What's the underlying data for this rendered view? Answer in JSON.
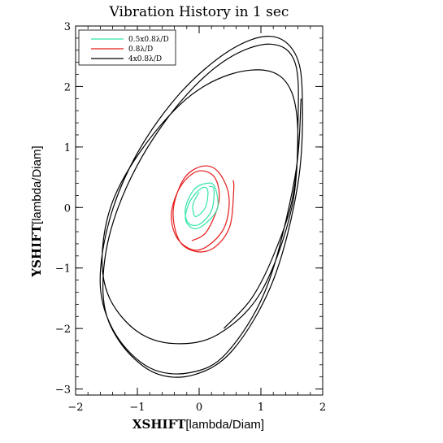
{
  "chart_data": {
    "type": "line",
    "title": "Vibration History in 1 sec",
    "xlabel": {
      "main": "XSHIFT",
      "unit": "[lambda/Diam]"
    },
    "ylabel": {
      "main": "YSHIFT",
      "unit": "[lambda/Diam]"
    },
    "xlim": [
      -2,
      2
    ],
    "ylim": [
      -3.1,
      3.0
    ],
    "xticks": [
      -2,
      -1,
      0,
      1,
      2
    ],
    "yticks": [
      -3,
      -2,
      -1,
      0,
      1,
      2,
      3
    ],
    "xtick_labels": [
      "−2",
      "−1",
      "0",
      "1",
      "2"
    ],
    "ytick_labels": [
      "−3",
      "−2",
      "−1",
      "0",
      "1",
      "2",
      "3"
    ],
    "legend_position": "top-left",
    "series": [
      {
        "name": "0.5x0.8λ/D",
        "color": "#33e6a6",
        "points": [
          [
            0.16,
            0.35
          ],
          [
            0.24,
            0.3
          ],
          [
            0.2,
            -0.05
          ],
          [
            0.0,
            -0.28
          ],
          [
            -0.18,
            -0.25
          ],
          [
            -0.22,
            0.0
          ],
          [
            -0.08,
            0.3
          ],
          [
            0.12,
            0.4
          ],
          [
            0.25,
            0.35
          ],
          [
            0.3,
            0.0
          ],
          [
            0.12,
            -0.25
          ],
          [
            -0.08,
            -0.35
          ],
          [
            -0.22,
            -0.2
          ],
          [
            -0.15,
            0.1
          ],
          [
            0.04,
            0.32
          ],
          [
            0.14,
            0.28
          ],
          [
            0.1,
            0.0
          ],
          [
            -0.06,
            -0.15
          ],
          [
            -0.1,
            0.05
          ],
          [
            0.0,
            0.25
          ]
        ]
      },
      {
        "name": "0.8λ/D",
        "color": "#e61a1a",
        "points": [
          [
            0.55,
            0.45
          ],
          [
            0.56,
            0.3
          ],
          [
            0.5,
            -0.3
          ],
          [
            0.26,
            -0.65
          ],
          [
            -0.04,
            -0.73
          ],
          [
            -0.32,
            -0.55
          ],
          [
            -0.42,
            -0.05
          ],
          [
            -0.25,
            0.47
          ],
          [
            0.04,
            0.68
          ],
          [
            0.3,
            0.6
          ],
          [
            0.48,
            0.2
          ],
          [
            0.42,
            -0.3
          ],
          [
            0.16,
            -0.62
          ],
          [
            -0.1,
            -0.7
          ],
          [
            -0.36,
            -0.5
          ],
          [
            -0.45,
            -0.1
          ],
          [
            -0.3,
            0.35
          ],
          [
            -0.02,
            0.6
          ],
          [
            0.25,
            0.5
          ],
          [
            0.32,
            0.1
          ],
          [
            0.12,
            -0.4
          ],
          [
            -0.12,
            -0.55
          ]
        ]
      },
      {
        "name": "4x0.8λ/D",
        "color": "#000000",
        "points": [
          [
            1.65,
            1.8
          ],
          [
            1.55,
            0.5
          ],
          [
            1.1,
            -1.3
          ],
          [
            0.45,
            -2.4
          ],
          [
            -0.15,
            -2.73
          ],
          [
            -0.8,
            -2.65
          ],
          [
            -1.35,
            -2.1
          ],
          [
            -1.6,
            -1.3
          ],
          [
            -1.45,
            -0.2
          ],
          [
            -1.0,
            0.9
          ],
          [
            -0.3,
            1.9
          ],
          [
            0.5,
            2.6
          ],
          [
            1.15,
            2.83
          ],
          [
            1.55,
            2.55
          ],
          [
            1.67,
            1.85
          ],
          [
            1.6,
            0.4
          ],
          [
            1.2,
            -1.2
          ],
          [
            0.55,
            -2.35
          ],
          [
            -0.1,
            -2.77
          ],
          [
            -0.75,
            -2.72
          ],
          [
            -1.3,
            -2.2
          ],
          [
            -1.55,
            -1.5
          ],
          [
            -1.45,
            -0.45
          ],
          [
            -1.0,
            0.7
          ],
          [
            -0.3,
            1.75
          ],
          [
            0.45,
            2.45
          ],
          [
            1.15,
            2.7
          ],
          [
            1.55,
            2.4
          ],
          [
            1.6,
            1.4
          ],
          [
            1.5,
            0.0
          ],
          [
            1.0,
            -1.4
          ],
          [
            0.3,
            -2.1
          ],
          [
            -0.4,
            -2.25
          ],
          [
            -1.0,
            -2.05
          ],
          [
            -1.45,
            -1.5
          ],
          [
            -1.57,
            -0.8
          ],
          [
            -1.4,
            0.1
          ],
          [
            -0.9,
            1.0
          ],
          [
            -0.2,
            1.8
          ],
          [
            0.5,
            2.2
          ],
          [
            1.15,
            2.25
          ],
          [
            1.5,
            1.9
          ],
          [
            1.6,
            1.1
          ],
          [
            1.5,
            0.1
          ],
          [
            1.2,
            -0.8
          ],
          [
            0.85,
            -1.5
          ],
          [
            0.4,
            -2.0
          ]
        ]
      }
    ]
  }
}
